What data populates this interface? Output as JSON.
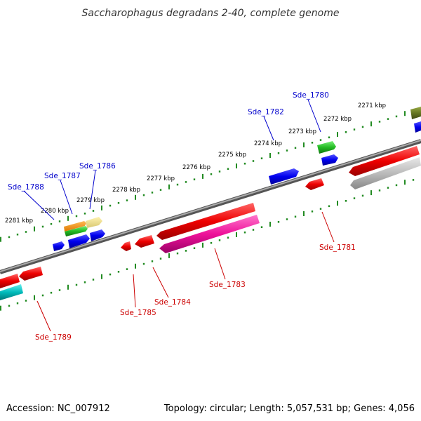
{
  "title": "Saccharophagus degradans 2-40, complete genome",
  "footer": {
    "accession": "Accession: NC_007912",
    "summary": "Topology: circular; Length: 5,057,531 bp; Genes: 4,056"
  },
  "ticks": [
    "2271 kbp",
    "2272 kbp",
    "2273 kbp",
    "2274 kbp",
    "2275 kbp",
    "2276 kbp",
    "2277 kbp",
    "2278 kbp",
    "2279 kbp",
    "2280 kbp",
    "2281 kbp"
  ],
  "genes": {
    "sde_1780": "Sde_1780",
    "sde_1781": "Sde_1781",
    "sde_1782": "Sde_1782",
    "sde_1783": "Sde_1783",
    "sde_1784": "Sde_1784",
    "sde_1785": "Sde_1785",
    "sde_1786": "Sde_1786",
    "sde_1787": "Sde_1787",
    "sde_1788": "Sde_1788",
    "sde_1789": "Sde_1789"
  },
  "colors": {
    "forward_label": "#0000cc",
    "reverse_label": "#cc0000",
    "tick_dots": "#228b22",
    "backbone": "#777777"
  }
}
